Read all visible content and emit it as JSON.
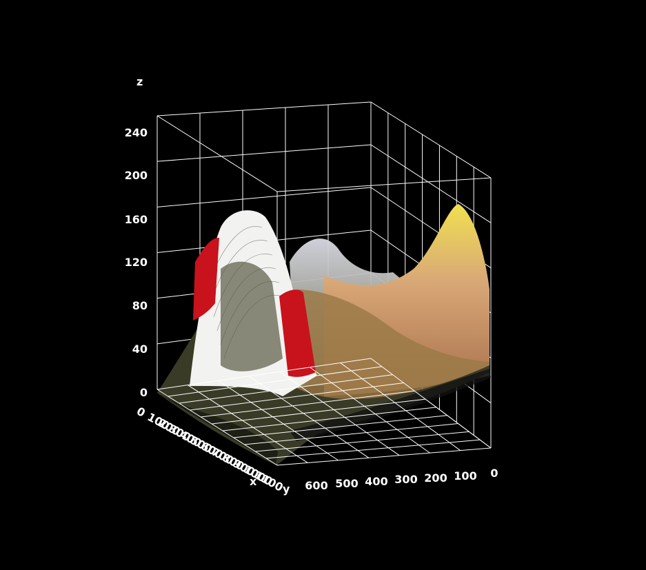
{
  "chart_data": {
    "type": "surface",
    "title": "",
    "xlabel": "x",
    "ylabel": "y",
    "zlabel": "z",
    "xlim": [
      0,
      1100
    ],
    "ylim": [
      0,
      650
    ],
    "zlim": [
      0,
      255
    ],
    "xticks": [
      "0",
      "100",
      "200",
      "300",
      "400",
      "500",
      "600",
      "700",
      "800",
      "900",
      "1000",
      "1100"
    ],
    "yticks": [
      "600",
      "500",
      "400",
      "300",
      "200",
      "100",
      "0"
    ],
    "zticks": [
      "240",
      "200",
      "160",
      "120",
      "80",
      "40",
      "0"
    ],
    "grid": true,
    "colors": {
      "background": "#000000",
      "grid": "#ffffff",
      "surface_light": "#e9e2cf",
      "surface_mid": "#b08a55",
      "surface_dark": "#3d3a22",
      "peak_highlight": "#e6d34a",
      "accent_red": "#c8121c"
    },
    "surface_ridges": [
      {
        "y": 600,
        "z_peak": 165
      },
      {
        "y": 420,
        "z_peak": 140
      },
      {
        "y": 200,
        "z_peak": 100
      },
      {
        "y": 60,
        "z_peak": 170
      }
    ]
  }
}
